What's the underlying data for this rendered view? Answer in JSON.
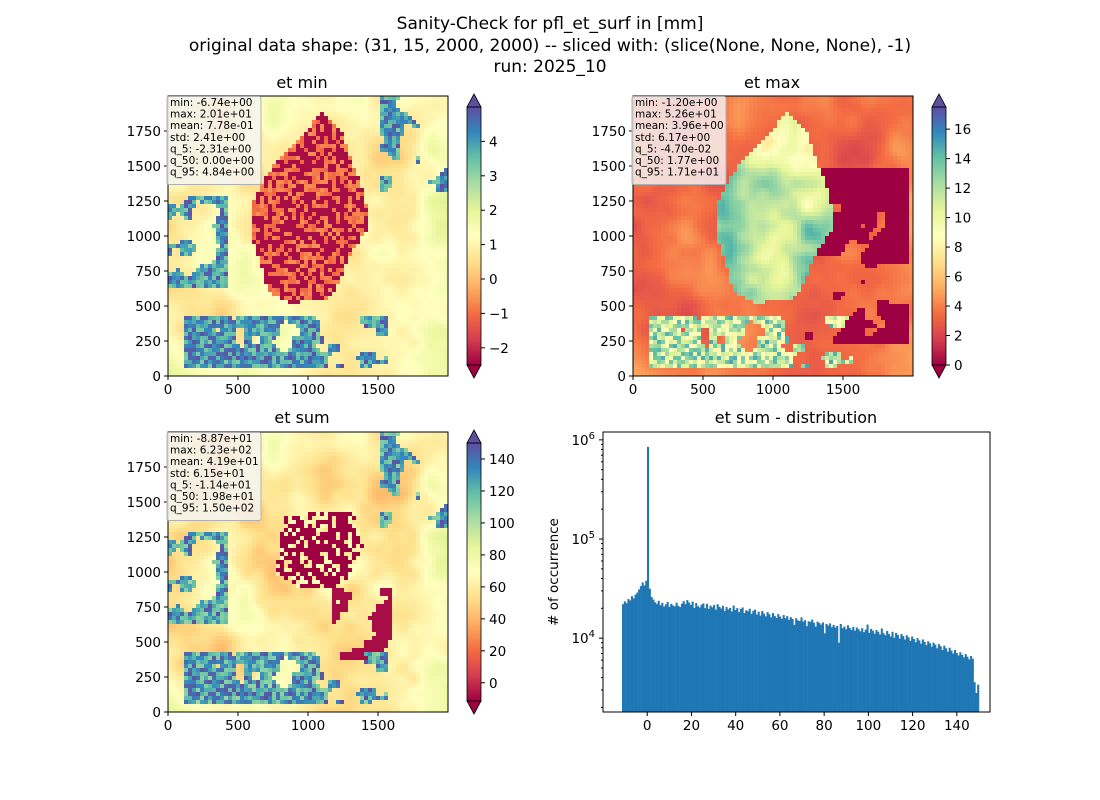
{
  "figure": {
    "title_lines": [
      "Sanity-Check for pfl_et_surf in [mm]",
      "original data shape: (31, 15, 2000, 2000) -- sliced with: (slice(None, None, None), -1)",
      "run: 2025_10"
    ]
  },
  "colormap": {
    "name": "Spectral",
    "stops": [
      "#9e0142",
      "#d53e4f",
      "#f46d43",
      "#fdae61",
      "#fee08b",
      "#ffffbf",
      "#e6f598",
      "#abdda4",
      "#66c2a5",
      "#3288bd",
      "#5e4fa2"
    ]
  },
  "chart_data": [
    {
      "type": "heatmap",
      "title": "et min",
      "xlim": [
        0,
        2000
      ],
      "ylim": [
        0,
        2000
      ],
      "xticks": [
        0,
        500,
        1000,
        1500
      ],
      "yticks": [
        0,
        250,
        500,
        750,
        1000,
        1250,
        1500,
        1750
      ],
      "colorbar": {
        "range": [
          -2.5,
          5.0
        ],
        "ticks": [
          "4",
          "3",
          "2",
          "1",
          "0",
          "−1",
          "−2"
        ],
        "tick_values": [
          4,
          3,
          2,
          1,
          0,
          -1,
          -2
        ],
        "extend": "both"
      },
      "stats": [
        "min: -6.74e+00",
        "max: 2.01e+01",
        "mean: 7.78e-01",
        "std: 2.41e+00",
        "q_5: -2.31e+00",
        "q_50: 0.00e+00",
        "q_95: 4.84e+00"
      ]
    },
    {
      "type": "heatmap",
      "title": "et max",
      "xlim": [
        0,
        2000
      ],
      "ylim": [
        0,
        2000
      ],
      "xticks": [
        0,
        500,
        1000,
        1500
      ],
      "yticks": [
        0,
        250,
        500,
        750,
        1000,
        1250,
        1500,
        1750
      ],
      "colorbar": {
        "range": [
          0,
          17.5
        ],
        "ticks": [
          "16",
          "14",
          "12",
          "10",
          "8",
          "6",
          "4",
          "2",
          "0"
        ],
        "tick_values": [
          16,
          14,
          12,
          10,
          8,
          6,
          4,
          2,
          0
        ],
        "extend": "both"
      },
      "stats": [
        "min: -1.20e+00",
        "max: 5.26e+01",
        "mean: 3.96e+00",
        "std: 6.17e+00",
        "q_5: -4.70e-02",
        "q_50: 1.77e+00",
        "q_95: 1.71e+01"
      ]
    },
    {
      "type": "heatmap",
      "title": "et sum",
      "xlim": [
        0,
        2000
      ],
      "ylim": [
        0,
        2000
      ],
      "xticks": [
        0,
        500,
        1000,
        1500
      ],
      "yticks": [
        0,
        250,
        500,
        750,
        1000,
        1250,
        1500,
        1750
      ],
      "colorbar": {
        "range": [
          -11.4,
          150
        ],
        "ticks": [
          "140",
          "120",
          "100",
          "80",
          "60",
          "40",
          "20",
          "0"
        ],
        "tick_values": [
          140,
          120,
          100,
          80,
          60,
          40,
          20,
          0
        ],
        "extend": "both"
      },
      "stats": [
        "min: -8.87e+01",
        "max: 6.23e+02",
        "mean: 4.19e+01",
        "std: 6.15e+01",
        "q_5: -1.14e+01",
        "q_50: 1.98e+01",
        "q_95: 1.50e+02"
      ]
    },
    {
      "type": "bar",
      "title": "et sum - distribution",
      "ylabel": "# of occurrence",
      "yscale": "log",
      "xlim": [
        -20,
        155
      ],
      "ylim": [
        1800,
        1200000
      ],
      "xticks": [
        "0",
        "20",
        "40",
        "60",
        "80",
        "100",
        "120",
        "140"
      ],
      "xtick_values": [
        0,
        20,
        40,
        60,
        80,
        100,
        120,
        140
      ],
      "yticks": [
        {
          "value": 10000,
          "base": "10",
          "exp": "4"
        },
        {
          "value": 100000,
          "base": "10",
          "exp": "5"
        },
        {
          "value": 1000000,
          "base": "10",
          "exp": "6"
        }
      ],
      "bin_edges_range": [
        -11.4,
        150
      ],
      "bin_count": 200,
      "bar_color": "#1f77b4",
      "spike": {
        "x": 0,
        "value": 850000
      },
      "values": [
        22000,
        23500,
        22500,
        24800,
        24000,
        26500,
        25200,
        27500,
        28800,
        31000,
        33500,
        36500,
        34000,
        38000,
        850000,
        31500,
        26000,
        24500,
        23000,
        22200,
        23800,
        21500,
        22700,
        20800,
        21900,
        23200,
        20700,
        22100,
        21400,
        20900,
        22800,
        21200,
        20600,
        22300,
        23600,
        22000,
        24200,
        22900,
        21700,
        23400,
        20200,
        22600,
        21000,
        20400,
        21800,
        22400,
        20100,
        22200,
        19800,
        21300,
        20500,
        21600,
        19400,
        22000,
        20700,
        19900,
        21200,
        18800,
        20600,
        19500,
        20200,
        18600,
        21300,
        19200,
        20100,
        18300,
        19700,
        20400,
        17900,
        19100,
        18700,
        19800,
        17600,
        18900,
        19400,
        17300,
        18500,
        16900,
        18800,
        17700,
        16600,
        18300,
        17400,
        16200,
        17900,
        16800,
        16000,
        17500,
        16500,
        15700,
        17100,
        15900,
        16700,
        15300,
        16300,
        15600,
        13600,
        15900,
        15100,
        14900,
        16200,
        14700,
        15200,
        13200,
        14800,
        14600,
        15400,
        14300,
        13100,
        14700,
        14200,
        13700,
        14400,
        11200,
        13900,
        13400,
        14100,
        12900,
        13600,
        12800,
        13300,
        9000,
        13900,
        12600,
        13100,
        12300,
        13500,
        12700,
        12100,
        13000,
        11900,
        12800,
        12300,
        11700,
        12600,
        11500,
        12200,
        13700,
        11300,
        12400,
        11900,
        11100,
        12100,
        11600,
        10900,
        12500,
        11200,
        10700,
        11800,
        11000,
        10400,
        11600,
        10100,
        11300,
        10800,
        9900,
        11000,
        10500,
        9700,
        10700,
        10200,
        9400,
        10400,
        9800,
        9100,
        10000,
        9500,
        8800,
        9700,
        9200,
        8500,
        9300,
        8900,
        8200,
        9000,
        8600,
        7900,
        8700,
        8300,
        7600,
        8400,
        7900,
        7300,
        8000,
        7500,
        7000,
        7600,
        7100,
        6700,
        7200,
        6800,
        6400,
        6900,
        6500,
        6100,
        6600,
        6200,
        3600,
        2800,
        3400
      ]
    }
  ]
}
